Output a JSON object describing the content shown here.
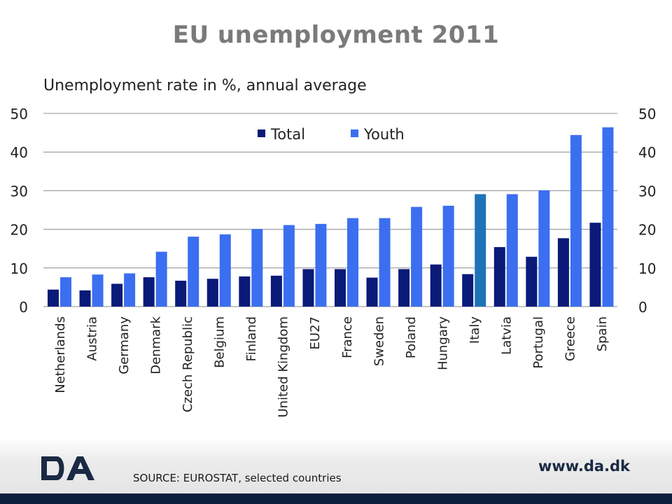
{
  "header": {
    "title": "EU unemployment 2011"
  },
  "chart_data": {
    "type": "bar",
    "title": "EU unemployment 2011",
    "subtitle": "Unemployment rate in %, annual average",
    "categories": [
      "Netherlands",
      "Austria",
      "Germany",
      "Denmark",
      "Czech Republic",
      "Belgium",
      "Finland",
      "United Kingdom",
      "EU27",
      "France",
      "Sweden",
      "Poland",
      "Hungary",
      "Italy",
      "Latvia",
      "Portugal",
      "Greece",
      "Spain"
    ],
    "series": [
      {
        "name": "Total",
        "color": "#0a1a78",
        "values": [
          4.4,
          4.2,
          5.9,
          7.6,
          6.7,
          7.2,
          7.8,
          8.0,
          9.7,
          9.7,
          7.5,
          9.7,
          10.9,
          8.4,
          15.4,
          12.9,
          17.7,
          21.7
        ]
      },
      {
        "name": "Youth",
        "color": "#3b6ff0",
        "highlight_color": "#1e73b8",
        "values": [
          7.6,
          8.3,
          8.6,
          14.2,
          18.1,
          18.7,
          20.1,
          21.1,
          21.4,
          22.9,
          22.9,
          25.8,
          26.1,
          29.1,
          29.1,
          30.1,
          44.4,
          46.4
        ]
      }
    ],
    "highlight_category": "Italy",
    "ylim": [
      0,
      50
    ],
    "yticks": [
      0,
      10,
      20,
      30,
      40,
      50
    ],
    "ytick_labels": [
      "0",
      "10",
      "20",
      "30",
      "40",
      "50"
    ],
    "grid": true,
    "legend": "top-center",
    "secondary_axis": true
  },
  "footer": {
    "source": "SOURCE: EUROSTAT, selected countries",
    "website": "www.da.dk",
    "logo_text": "DA"
  }
}
